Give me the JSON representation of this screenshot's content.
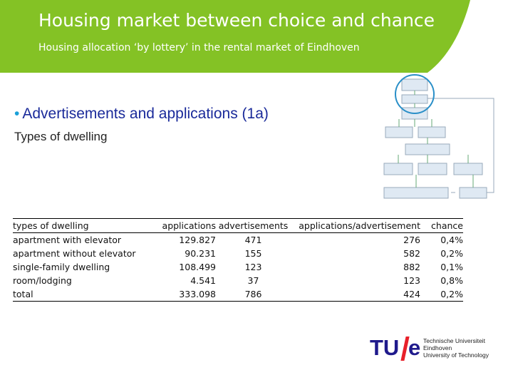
{
  "header": {
    "title": "Housing market between choice and chance",
    "subtitle": "Housing allocation ‘by lottery’ in the rental market of Eindhoven"
  },
  "content": {
    "bullet": "Advertisements and applications (1a)",
    "subheading": "Types of dwelling"
  },
  "table": {
    "columns": [
      "types of dwelling",
      "applications",
      "advertisements",
      "applications/advertisement",
      "chance"
    ],
    "rows": [
      [
        "apartment with elevator",
        "129.827",
        "471",
        "276",
        "0,4%"
      ],
      [
        "apartment without elevator",
        "90.231",
        "155",
        "582",
        "0,2%"
      ],
      [
        "single-family dwelling",
        "108.499",
        "123",
        "882",
        "0,1%"
      ],
      [
        "room/lodging",
        "4.541",
        "37",
        "123",
        "0,8%"
      ],
      [
        "total",
        "333.098",
        "786",
        "424",
        "0,2%"
      ]
    ]
  },
  "logo": {
    "mark_left": "TU",
    "mark_right": "e",
    "line1": "Technische Universiteit",
    "line2": "Eindhoven",
    "line3": "University of Technology"
  },
  "colors": {
    "header_green": "#84c225",
    "bullet_blue": "#1a2a9a",
    "logo_blue": "#1f1a8c",
    "logo_red": "#e8202a"
  }
}
